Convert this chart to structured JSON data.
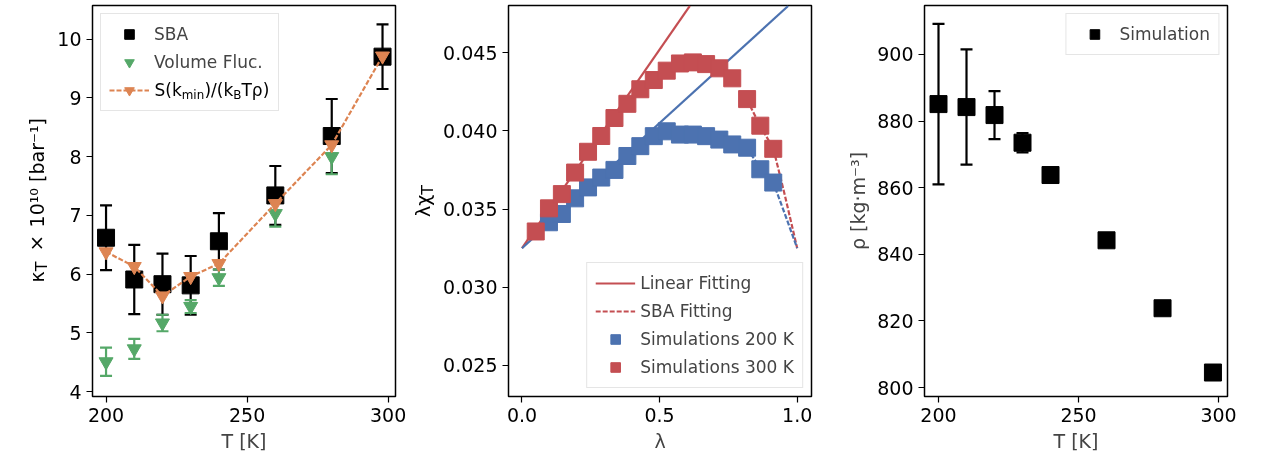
{
  "chart_data": [
    {
      "type": "scatter",
      "xlabel": "T [K]",
      "ylabel": "κ$_{T}$ × 10¹⁰ [bar⁻¹]",
      "x": [
        200,
        210,
        220,
        230,
        240,
        260,
        280,
        298
      ],
      "xlim": [
        195.2,
        302.6
      ],
      "ylim": [
        3.92,
        10.57
      ],
      "xticks": [
        200,
        250,
        300
      ],
      "yticks": [
        4,
        5,
        6,
        7,
        8,
        9,
        10
      ],
      "grid": false,
      "legend": "top left",
      "marker": "square",
      "series": [
        {
          "name": "SBA",
          "color": "#000000",
          "marker": "square",
          "values": [
            6.62,
            5.91,
            5.83,
            5.81,
            6.56,
            7.34,
            8.35,
            9.7
          ],
          "errors": [
            0.55,
            0.59,
            0.52,
            0.5,
            0.48,
            0.5,
            0.63,
            0.55
          ]
        },
        {
          "name": "Volume Fluc.",
          "color": "#55a868",
          "marker": "triangle",
          "values": [
            4.51,
            4.73,
            5.17,
            5.45,
            5.94,
            7.03,
            8.0,
            null
          ],
          "errors": [
            0.24,
            0.17,
            0.14,
            0.11,
            0.14,
            0.22,
            0.3,
            null
          ]
        },
        {
          "name": "S(k$_{min}$)/(k$_{B}$Tρ)",
          "type": "line",
          "color": "#dd8452",
          "marker": "triangle",
          "line_style": "dashed",
          "values": [
            6.38,
            6.13,
            5.63,
            5.96,
            6.18,
            7.2,
            8.2,
            9.71
          ]
        }
      ]
    },
    {
      "type": "scatter",
      "xlabel": "λ",
      "ylabel": "λχ$_{T}$",
      "xlim": [
        -0.049,
        1.052
      ],
      "ylim": [
        0.02301,
        0.04803
      ],
      "xticks": [
        {
          "value": 0,
          "label": "0.0"
        },
        0.5,
        {
          "value": 1,
          "label": "1.0"
        }
      ],
      "yticks": [
        0.025,
        {
          "value": 0.03,
          "label": "0.030"
        },
        0.035,
        {
          "value": 0.04,
          "label": "0.040"
        },
        0.045
      ],
      "grid": false,
      "legend": "bottom right",
      "marker": "none",
      "series": [
        {
          "name": "Linear Fitting",
          "type": "line",
          "line_style": "solid",
          "color": "#c44e52",
          "x": [
            0,
            0.61
          ],
          "values": [
            0.0325,
            0.048
          ]
        },
        {
          "type": "line",
          "line_style": "solid",
          "color": "#4c72b0",
          "x": [
            0,
            0.967
          ],
          "values": [
            0.0325,
            0.048
          ]
        },
        {
          "name": "SBA Fitting",
          "type": "line",
          "line_style": "dashed",
          "color": "#c44e52",
          "x": [
            0.818,
            0.866,
            0.913,
            0.955,
            1.0
          ],
          "values": [
            0.042,
            0.0403,
            0.0389,
            0.0359,
            0.0325
          ]
        },
        {
          "type": "line",
          "line_style": "dashed",
          "color": "#4c72b0",
          "x": [
            0.818,
            0.866,
            0.913,
            0.955,
            1.0
          ],
          "values": [
            0.0389,
            0.0376,
            0.0367,
            0.0347,
            0.0325
          ]
        },
        {
          "name": "Simulations 200 K",
          "color": "#4c72b0",
          "marker": "square",
          "x": [
            0.098,
            0.145,
            0.193,
            0.24,
            0.288,
            0.336,
            0.383,
            0.43,
            0.479,
            0.526,
            0.574,
            0.621,
            0.669,
            0.717,
            0.764,
            0.818,
            0.866,
            0.913
          ],
          "values": [
            0.03416,
            0.03469,
            0.03569,
            0.03639,
            0.03702,
            0.03751,
            0.0384,
            0.03903,
            0.03967,
            0.03998,
            0.03977,
            0.03977,
            0.03967,
            0.03945,
            0.03914,
            0.03893,
            0.03755,
            0.0367
          ]
        },
        {
          "name": "Simulations 300 K",
          "color": "#c44e52",
          "marker": "square",
          "x": [
            0.05,
            0.098,
            0.145,
            0.193,
            0.24,
            0.288,
            0.336,
            0.383,
            0.43,
            0.479,
            0.526,
            0.574,
            0.621,
            0.669,
            0.717,
            0.764,
            0.818,
            0.866,
            0.913
          ],
          "values": [
            0.03357,
            0.03505,
            0.03596,
            0.03734,
            0.03867,
            0.03968,
            0.04083,
            0.04174,
            0.04267,
            0.04326,
            0.04386,
            0.04432,
            0.04439,
            0.04428,
            0.04401,
            0.04337,
            0.04204,
            0.04034,
            0.03886
          ]
        }
      ]
    },
    {
      "type": "scatter",
      "xlabel": "T [K]",
      "ylabel": "ρ [kg·m⁻³]",
      "x": [
        200,
        210,
        220,
        230,
        240,
        260,
        280,
        298
      ],
      "xlim": [
        195.0,
        303.2
      ],
      "ylim": [
        797.3,
        914.7
      ],
      "xticks": [
        200,
        250,
        300
      ],
      "yticks": [
        800,
        820,
        840,
        860,
        880,
        900
      ],
      "grid": false,
      "legend": "top right",
      "marker": "square",
      "series": [
        {
          "name": "Simulation",
          "color": "#000000",
          "values": [
            885.1,
            884.2,
            881.8,
            873.5,
            863.8,
            844.2,
            823.8,
            804.5
          ],
          "errors": [
            24.1,
            17.3,
            7.2,
            2.9,
            null,
            null,
            null,
            null
          ]
        }
      ]
    }
  ]
}
